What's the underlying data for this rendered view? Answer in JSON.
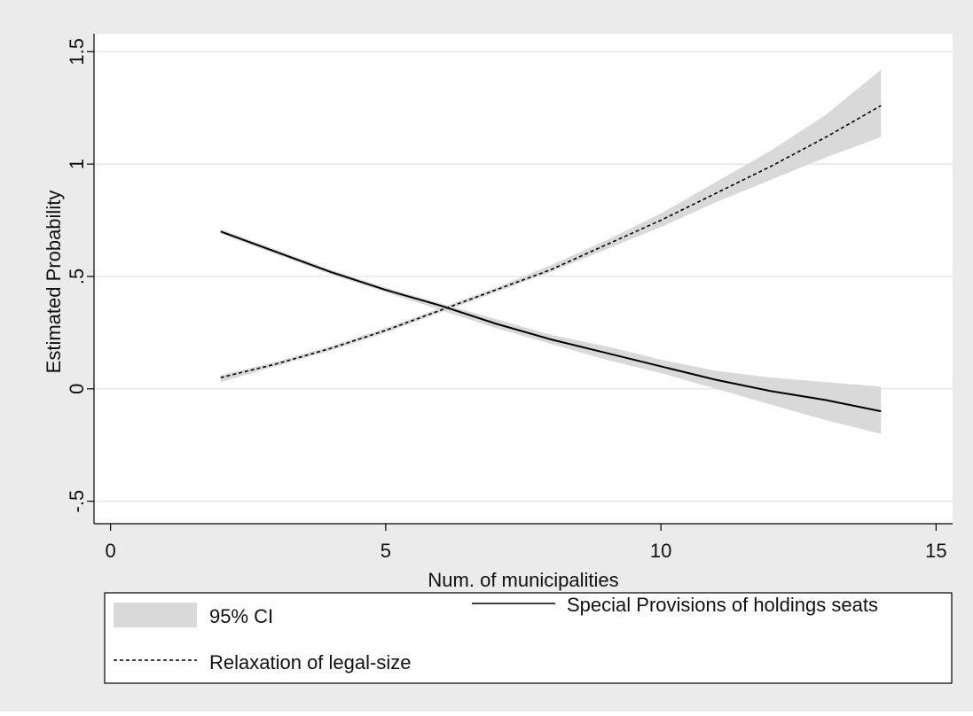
{
  "chart_data": {
    "type": "line",
    "xlabel": "Num. of municipalities",
    "ylabel": "Estimated Probability",
    "xlim": [
      -0.3,
      15.3
    ],
    "ylim": [
      -0.6,
      1.58
    ],
    "xticks": [
      {
        "value": 0,
        "label": "0"
      },
      {
        "value": 5,
        "label": "5"
      },
      {
        "value": 10,
        "label": "10"
      },
      {
        "value": 15,
        "label": "15"
      }
    ],
    "yticks": [
      {
        "value": -0.5,
        "label": "-.5"
      },
      {
        "value": 0,
        "label": "0"
      },
      {
        "value": 0.5,
        "label": ".5"
      },
      {
        "value": 1,
        "label": "1"
      },
      {
        "value": 1.5,
        "label": "1.5"
      }
    ],
    "grid": "horizontal",
    "series": [
      {
        "name": "Special Provisions of holdings seats",
        "style": "solid",
        "x": [
          2,
          3,
          4,
          5,
          6,
          7,
          8,
          9,
          10,
          11,
          12,
          13,
          14
        ],
        "y": [
          0.7,
          0.61,
          0.52,
          0.44,
          0.37,
          0.29,
          0.22,
          0.16,
          0.1,
          0.04,
          -0.01,
          -0.05,
          -0.1
        ],
        "lower": [
          0.69,
          0.6,
          0.51,
          0.43,
          0.35,
          0.27,
          0.2,
          0.13,
          0.07,
          0.0,
          -0.07,
          -0.14,
          -0.2
        ],
        "upper": [
          0.71,
          0.62,
          0.53,
          0.45,
          0.38,
          0.31,
          0.24,
          0.19,
          0.13,
          0.08,
          0.05,
          0.03,
          0.01
        ]
      },
      {
        "name": "Relaxation of legal-size",
        "style": "dashed",
        "x": [
          2,
          3,
          4,
          5,
          6,
          7,
          8,
          9,
          10,
          11,
          12,
          13,
          14
        ],
        "y": [
          0.05,
          0.11,
          0.18,
          0.26,
          0.35,
          0.44,
          0.53,
          0.64,
          0.75,
          0.87,
          0.99,
          1.12,
          1.26
        ],
        "lower": [
          0.03,
          0.1,
          0.17,
          0.25,
          0.34,
          0.43,
          0.52,
          0.62,
          0.72,
          0.83,
          0.93,
          1.03,
          1.12
        ],
        "upper": [
          0.06,
          0.12,
          0.19,
          0.27,
          0.36,
          0.45,
          0.55,
          0.66,
          0.78,
          0.92,
          1.06,
          1.22,
          1.42
        ]
      }
    ],
    "legend": {
      "position": "bottom",
      "entries": [
        {
          "label": "95% CI",
          "kind": "band"
        },
        {
          "label": "Special Provisions of holdings seats",
          "kind": "solid"
        },
        {
          "label": "Relaxation of legal-size",
          "kind": "dashed"
        }
      ]
    },
    "colors": {
      "outer_background": "#ebebeb",
      "plot_background": "#ffffff",
      "ci_band": "#d9d9d9",
      "gridline": "#e6e6e6",
      "line": "#000000"
    }
  }
}
